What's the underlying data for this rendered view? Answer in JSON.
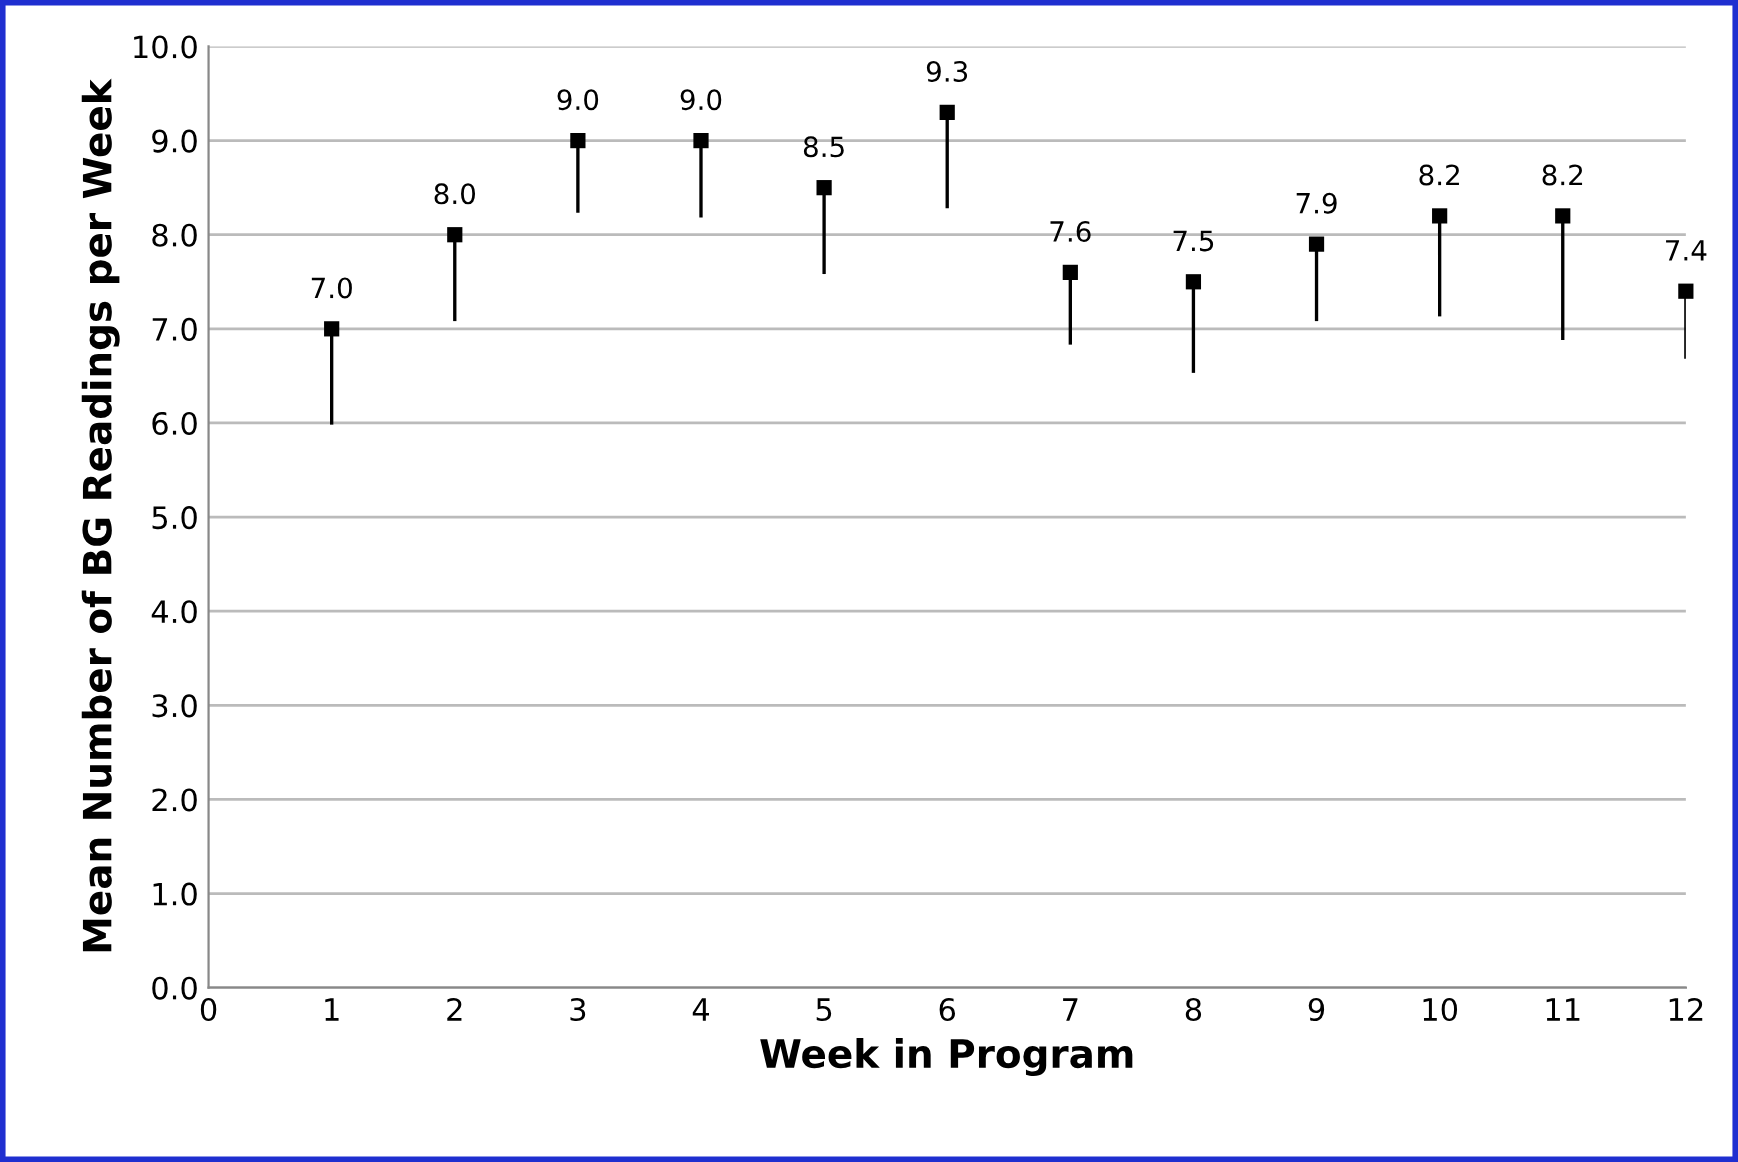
{
  "chart_data": {
    "type": "scatter",
    "xlabel": "Week in Program",
    "ylabel": "Mean Number of BG Readings per Week",
    "x": [
      1,
      2,
      3,
      4,
      5,
      6,
      7,
      8,
      9,
      10,
      11,
      12
    ],
    "values": [
      7.0,
      8.0,
      9.0,
      9.0,
      8.5,
      9.3,
      7.6,
      7.5,
      7.9,
      8.2,
      8.2,
      7.4
    ],
    "errors": [
      [
        6.0,
        7.0
      ],
      [
        7.1,
        8.0
      ],
      [
        8.25,
        9.0
      ],
      [
        8.2,
        9.0
      ],
      [
        7.6,
        8.5
      ],
      [
        8.3,
        9.3
      ],
      [
        6.85,
        7.6
      ],
      [
        6.55,
        7.5
      ],
      [
        7.1,
        7.9
      ],
      [
        7.15,
        8.2
      ],
      [
        6.9,
        8.2
      ],
      [
        6.7,
        7.4
      ]
    ],
    "value_labels": [
      "7.0",
      "8.0",
      "9.0",
      "9.0",
      "8.5",
      "9.3",
      "7.6",
      "7.5",
      "7.9",
      "8.2",
      "8.2",
      "7.4"
    ],
    "color": "#000000",
    "xlim": [
      0,
      12
    ],
    "xticks": [
      0,
      1,
      2,
      3,
      4,
      5,
      6,
      7,
      8,
      9,
      10,
      11,
      12
    ],
    "ylim": [
      0,
      10
    ],
    "yticks": [
      {
        "value": 0,
        "label": "0.0"
      },
      {
        "value": 1,
        "label": "1.0"
      },
      {
        "value": 2,
        "label": "2.0"
      },
      {
        "value": 3,
        "label": "3.0"
      },
      {
        "value": 4,
        "label": "4.0"
      },
      {
        "value": 5,
        "label": "5.0"
      },
      {
        "value": 6,
        "label": "6.0"
      },
      {
        "value": 7,
        "label": "7.0"
      },
      {
        "value": 8,
        "label": "8.0"
      },
      {
        "value": 9,
        "label": "9.0"
      },
      {
        "value": 10,
        "label": "10.0"
      }
    ],
    "grid": "y",
    "marker": "square"
  }
}
